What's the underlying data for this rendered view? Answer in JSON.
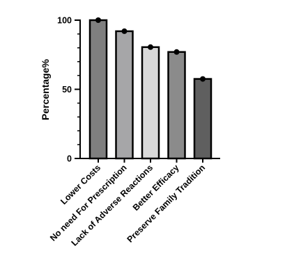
{
  "chart_data": {
    "type": "bar",
    "title": "",
    "xlabel": "",
    "ylabel": "Percentage%",
    "ylim": [
      0,
      100
    ],
    "yticks": [
      0,
      50,
      100
    ],
    "grid": false,
    "categories": [
      "Lower Costs",
      "No need For Prescription",
      "Lack of Adverse Reactions",
      "Better Efficacy",
      "Preserve Family Tradition"
    ],
    "values": [
      100,
      92,
      80.5,
      77,
      57.5
    ],
    "bar_colors": [
      "#7f7f7f",
      "#a6a6a8",
      "#d9d9d9",
      "#8b8b8b",
      "#5f5f5f"
    ],
    "marker_color": "#000000",
    "axis_color": "#000000"
  }
}
